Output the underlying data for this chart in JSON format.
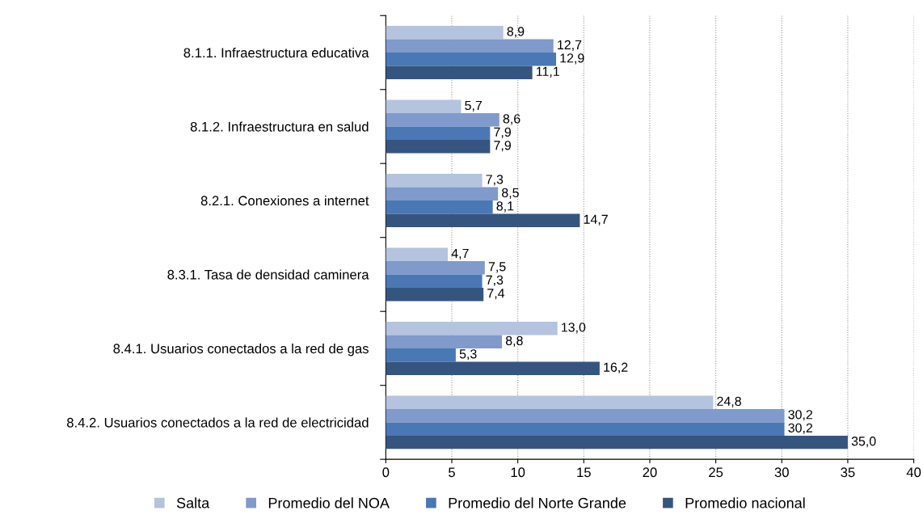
{
  "chart_data": {
    "type": "bar",
    "orientation": "horizontal",
    "categories": [
      "8.1.1. Infraestructura educativa",
      "8.1.2. Infraestructura en salud",
      "8.2.1. Conexiones a internet",
      "8.3.1. Tasa de densidad caminera",
      "8.4.1. Usuarios conectados a la red de gas",
      "8.4.2. Usuarios conectados a la red de electricidad"
    ],
    "series": [
      {
        "name": "Salta",
        "color": "#b4c3de",
        "values": [
          8.9,
          5.7,
          7.3,
          4.7,
          13.0,
          24.8
        ],
        "value_labels": [
          "8,9",
          "5,7",
          "7,3",
          "4,7",
          "13,0",
          "24,8"
        ]
      },
      {
        "name": "Promedio del NOA",
        "color": "#7f9acb",
        "values": [
          12.7,
          8.6,
          8.5,
          7.5,
          8.8,
          30.2
        ],
        "value_labels": [
          "12,7",
          "8,6",
          "8,5",
          "7,5",
          "8,8",
          "30,2"
        ]
      },
      {
        "name": "Promedio del Norte Grande",
        "color": "#4a78b5",
        "values": [
          12.9,
          7.9,
          8.1,
          7.3,
          5.3,
          30.2
        ],
        "value_labels": [
          "12,9",
          "7,9",
          "8,1",
          "7,3",
          "5,3",
          "30,2"
        ]
      },
      {
        "name": "Promedio nacional",
        "color": "#35557f",
        "values": [
          11.1,
          7.9,
          14.7,
          7.4,
          16.2,
          35.0
        ],
        "value_labels": [
          "11,1",
          "7,9",
          "14,7",
          "7,4",
          "16,2",
          "35,0"
        ]
      }
    ],
    "xlim": [
      0,
      40
    ],
    "xticks": [
      0,
      5,
      10,
      15,
      20,
      25,
      30,
      35,
      40
    ],
    "grid": "x",
    "legend": "bottom"
  }
}
